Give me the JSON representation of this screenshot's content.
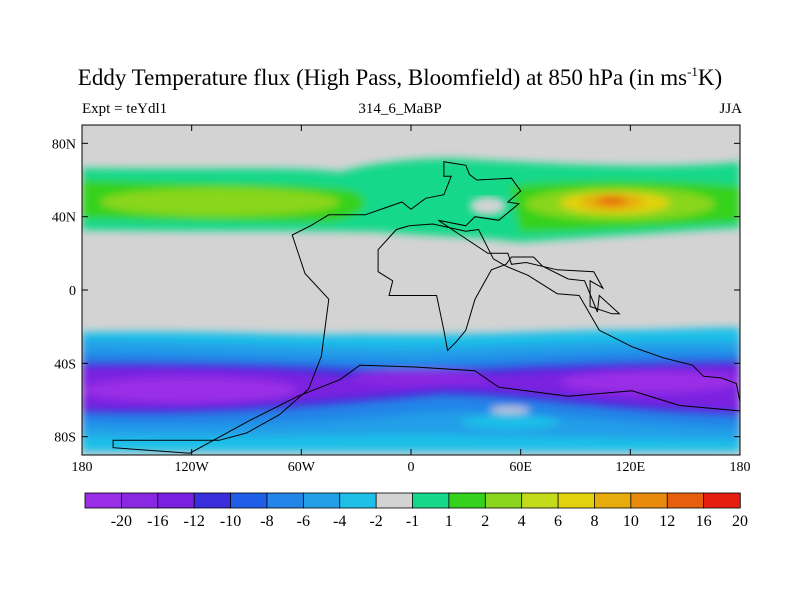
{
  "title": {
    "main": "Eddy Temperature flux (High Pass, Bloomfield) at 850 hPa (in ms",
    "sup": "-1",
    "tail": "K)"
  },
  "left_label": "Expt = teYdl1",
  "center_label": "314_6_MaBP",
  "right_label": "JJA",
  "map": {
    "lat_range": [
      -90,
      90
    ],
    "lon_range": [
      -180,
      180
    ],
    "lat_ticks": [
      {
        "value": 80,
        "label": "80N"
      },
      {
        "value": 40,
        "label": "40N"
      },
      {
        "value": 0,
        "label": "0"
      },
      {
        "value": -40,
        "label": "40S"
      },
      {
        "value": -80,
        "label": "80S"
      }
    ],
    "lon_ticks": [
      {
        "value": -180,
        "label": "180"
      },
      {
        "value": -120,
        "label": "120W"
      },
      {
        "value": -60,
        "label": "60W"
      },
      {
        "value": 0,
        "label": "0"
      },
      {
        "value": 60,
        "label": "60E"
      },
      {
        "value": 120,
        "label": "120E"
      },
      {
        "value": 180,
        "label": "180"
      }
    ],
    "land_outline": [
      [
        -39,
        -49
      ],
      [
        -62,
        -58
      ],
      [
        -88,
        -71
      ],
      [
        -121,
        -89
      ],
      [
        -163,
        -86
      ],
      [
        -163,
        -82
      ],
      [
        -105,
        -82
      ],
      [
        -90,
        -78
      ],
      [
        -72,
        -68
      ],
      [
        -56,
        -54
      ],
      [
        -49,
        -36
      ],
      [
        -45,
        -5
      ],
      [
        -58,
        9
      ],
      [
        -65,
        30
      ],
      [
        -55,
        35
      ],
      [
        -45,
        41
      ],
      [
        -25,
        41
      ],
      [
        -5,
        48
      ],
      [
        0,
        44
      ],
      [
        8,
        50
      ],
      [
        18,
        52
      ],
      [
        22,
        62
      ],
      [
        18,
        62
      ],
      [
        18,
        70
      ],
      [
        30,
        68
      ],
      [
        32,
        63
      ],
      [
        36,
        60
      ],
      [
        55,
        61
      ],
      [
        60,
        54
      ],
      [
        53,
        48
      ],
      [
        59,
        47
      ],
      [
        48,
        38
      ],
      [
        35,
        40
      ],
      [
        30,
        35
      ],
      [
        15,
        38
      ],
      [
        27,
        30
      ],
      [
        42,
        20
      ],
      [
        53,
        20
      ],
      [
        55,
        14
      ],
      [
        63,
        15
      ],
      [
        80,
        11
      ],
      [
        100,
        10
      ],
      [
        105,
        1
      ],
      [
        98,
        5
      ],
      [
        98,
        -9
      ],
      [
        110,
        -13
      ],
      [
        114,
        -13
      ],
      [
        103,
        -3
      ],
      [
        102,
        -12
      ],
      [
        95,
        5
      ],
      [
        86,
        6
      ],
      [
        72,
        13
      ],
      [
        67,
        18
      ],
      [
        58,
        18
      ],
      [
        55,
        18
      ],
      [
        52,
        14
      ],
      [
        44,
        11
      ],
      [
        35,
        -5
      ],
      [
        30,
        -22
      ],
      [
        25,
        -28
      ],
      [
        20,
        -33
      ],
      [
        18,
        -22
      ],
      [
        14,
        -3
      ],
      [
        12,
        -3
      ],
      [
        -12,
        -3
      ],
      [
        -10,
        5
      ],
      [
        -18,
        10
      ],
      [
        -18,
        22
      ],
      [
        -8,
        33
      ],
      [
        -1,
        35
      ],
      [
        12,
        36
      ],
      [
        30,
        32
      ],
      [
        37,
        33
      ],
      [
        45,
        17
      ],
      [
        52,
        13
      ],
      [
        64,
        8
      ],
      [
        80,
        -2
      ],
      [
        92,
        -3
      ],
      [
        103,
        -22
      ],
      [
        121,
        -31
      ],
      [
        138,
        -37
      ],
      [
        154,
        -41
      ],
      [
        160,
        -47
      ],
      [
        170,
        -48
      ],
      [
        178,
        -51
      ],
      [
        181,
        -66
      ],
      [
        147,
        -63
      ],
      [
        121,
        -55
      ],
      [
        86,
        -58
      ],
      [
        48,
        -53
      ],
      [
        35,
        -44
      ],
      [
        2,
        -42
      ],
      [
        -28,
        -41
      ],
      [
        -39,
        -49
      ]
    ]
  },
  "colorbar": {
    "labels": [
      "-20",
      "-16",
      "-12",
      "-10",
      "-8",
      "-6",
      "-4",
      "-2",
      "-1",
      "1",
      "2",
      "4",
      "6",
      "8",
      "10",
      "12",
      "16",
      "20"
    ],
    "colors": [
      "#9a2ee6",
      "#8a27e2",
      "#7a20e0",
      "#3a2ddc",
      "#1f5fe8",
      "#2485e8",
      "#239fe8",
      "#1fc0e8",
      "#d3d3d3",
      "#15d88a",
      "#34d21c",
      "#8ad61f",
      "#c2dc19",
      "#e2d20e",
      "#e6ac0b",
      "#e88a0c",
      "#e65f0d",
      "#e61e12"
    ]
  }
}
